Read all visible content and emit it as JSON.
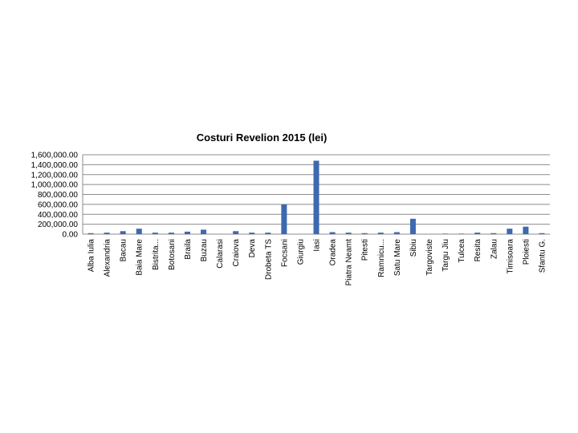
{
  "chart_data": {
    "type": "bar",
    "title": "Costuri Revelion 2015 (lei)",
    "categories": [
      "Alba Iulia",
      "Alexandria",
      "Bacau",
      "Baia Mare",
      "Bistrita...",
      "Botosani",
      "Braila",
      "Buzau",
      "Calarasi",
      "Craiova",
      "Deva",
      "Drobeta TS",
      "Focsani",
      "Giurgiu",
      "Iasi",
      "Oradea",
      "Piatra Neamt",
      "Pitesti",
      "Ramnicu...",
      "Satu Mare",
      "Sibiu",
      "Targoviste",
      "Targu Jiu",
      "Tulcea",
      "Resita",
      "Zalau",
      "Timisoara",
      "Ploiesti",
      "Sfantu G."
    ],
    "values": [
      20000,
      30000,
      60000,
      110000,
      30000,
      30000,
      50000,
      90000,
      0,
      60000,
      30000,
      30000,
      600000,
      0,
      1480000,
      40000,
      30000,
      20000,
      30000,
      40000,
      310000,
      0,
      10000,
      10000,
      30000,
      20000,
      110000,
      150000,
      20000
    ],
    "color": "#3c69b0",
    "ylim": [
      0,
      1600000
    ],
    "yticks": [
      {
        "value": 0,
        "label": "0.00"
      },
      {
        "value": 200000,
        "label": "200,000.00"
      },
      {
        "value": 400000,
        "label": "400,000.00"
      },
      {
        "value": 600000,
        "label": "600,000.00"
      },
      {
        "value": 800000,
        "label": "800,000.00"
      },
      {
        "value": 1000000,
        "label": "1,000,000.00"
      },
      {
        "value": 1200000,
        "label": "1,200,000.00"
      },
      {
        "value": 1400000,
        "label": "1,400,000.00"
      },
      {
        "value": 1600000,
        "label": "1,600,000.00"
      }
    ],
    "grid": true
  }
}
